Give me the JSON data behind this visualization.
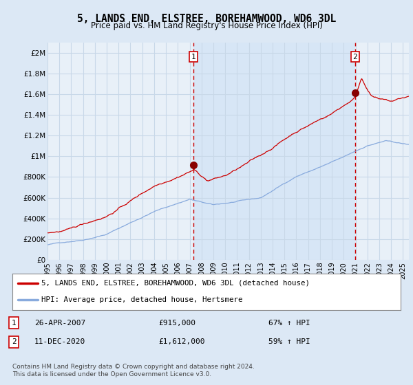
{
  "title": "5, LANDS END, ELSTREE, BOREHAMWOOD, WD6 3DL",
  "subtitle": "Price paid vs. HM Land Registry's House Price Index (HPI)",
  "ylim": [
    0,
    2100000
  ],
  "yticks": [
    0,
    200000,
    400000,
    600000,
    800000,
    1000000,
    1200000,
    1400000,
    1600000,
    1800000,
    2000000
  ],
  "ytick_labels": [
    "£0",
    "£200K",
    "£400K",
    "£600K",
    "£800K",
    "£1M",
    "£1.2M",
    "£1.4M",
    "£1.6M",
    "£1.8M",
    "£2M"
  ],
  "xtick_years": [
    1995,
    1996,
    1997,
    1998,
    1999,
    2000,
    2001,
    2002,
    2003,
    2004,
    2005,
    2006,
    2007,
    2008,
    2009,
    2010,
    2011,
    2012,
    2013,
    2014,
    2015,
    2016,
    2017,
    2018,
    2019,
    2020,
    2021,
    2022,
    2023,
    2024,
    2025
  ],
  "red_line_color": "#cc0000",
  "blue_line_color": "#88aadd",
  "shade_color": "#cce0f5",
  "marker1_x": 2007.32,
  "marker1_y": 915000,
  "marker2_x": 2020.95,
  "marker2_y": 1612000,
  "legend_label_red": "5, LANDS END, ELSTREE, BOREHAMWOOD, WD6 3DL (detached house)",
  "legend_label_blue": "HPI: Average price, detached house, Hertsmere",
  "note1_date": "26-APR-2007",
  "note1_price": "£915,000",
  "note1_hpi": "67% ↑ HPI",
  "note2_date": "11-DEC-2020",
  "note2_price": "£1,612,000",
  "note2_hpi": "59% ↑ HPI",
  "footer": "Contains HM Land Registry data © Crown copyright and database right 2024.\nThis data is licensed under the Open Government Licence v3.0.",
  "bg_color": "#dce8f5",
  "plot_bg": "#e8f0f8",
  "grid_color": "#c8d8e8"
}
